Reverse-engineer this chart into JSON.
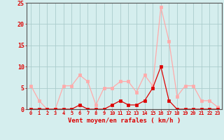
{
  "hours": [
    0,
    1,
    2,
    3,
    4,
    5,
    6,
    7,
    8,
    9,
    10,
    11,
    12,
    13,
    14,
    15,
    16,
    17,
    18,
    19,
    20,
    21,
    22,
    23
  ],
  "vent_moyen": [
    0,
    0,
    0,
    0,
    0,
    0,
    1,
    0,
    0,
    0,
    1,
    2,
    1,
    1,
    2,
    5,
    10,
    2,
    0,
    0,
    0,
    0,
    0,
    0
  ],
  "en_rafales": [
    5.5,
    2,
    0,
    0,
    5.5,
    5.5,
    8,
    6.5,
    1,
    5,
    5,
    6.5,
    6.5,
    4,
    8,
    5.5,
    24,
    16,
    3,
    5.5,
    5.5,
    2,
    2,
    0.5
  ],
  "color_moyen": "#dd0000",
  "color_rafales": "#ffaaaa",
  "bg_color": "#d5eeee",
  "grid_color": "#aacccc",
  "xlabel": "Vent moyen/en rafales ( km/h )",
  "ylim": [
    0,
    25
  ],
  "yticks": [
    0,
    5,
    10,
    15,
    20,
    25
  ],
  "tick_color": "#dd0000",
  "line_width": 0.9,
  "marker_size": 2.5
}
